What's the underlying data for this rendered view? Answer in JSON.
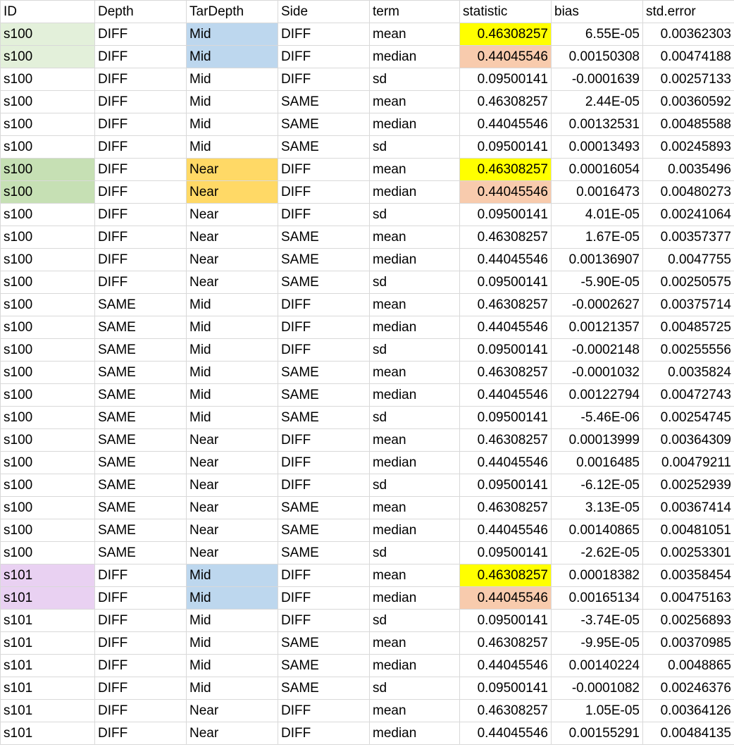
{
  "sheet": {
    "headers": [
      "ID",
      "Depth",
      "TarDepth",
      "Side",
      "term",
      "statistic",
      "bias",
      "std.error"
    ],
    "rows": [
      [
        "s100",
        "DIFF",
        "Mid",
        "DIFF",
        "mean",
        "0.46308257",
        "6.55E-05",
        "0.00362303"
      ],
      [
        "s100",
        "DIFF",
        "Mid",
        "DIFF",
        "median",
        "0.44045546",
        "0.00150308",
        "0.00474188"
      ],
      [
        "s100",
        "DIFF",
        "Mid",
        "DIFF",
        "sd",
        "0.09500141",
        "-0.0001639",
        "0.00257133"
      ],
      [
        "s100",
        "DIFF",
        "Mid",
        "SAME",
        "mean",
        "0.46308257",
        "2.44E-05",
        "0.00360592"
      ],
      [
        "s100",
        "DIFF",
        "Mid",
        "SAME",
        "median",
        "0.44045546",
        "0.00132531",
        "0.00485588"
      ],
      [
        "s100",
        "DIFF",
        "Mid",
        "SAME",
        "sd",
        "0.09500141",
        "0.00013493",
        "0.00245893"
      ],
      [
        "s100",
        "DIFF",
        "Near",
        "DIFF",
        "mean",
        "0.46308257",
        "0.00016054",
        "0.0035496"
      ],
      [
        "s100",
        "DIFF",
        "Near",
        "DIFF",
        "median",
        "0.44045546",
        "0.0016473",
        "0.00480273"
      ],
      [
        "s100",
        "DIFF",
        "Near",
        "DIFF",
        "sd",
        "0.09500141",
        "4.01E-05",
        "0.00241064"
      ],
      [
        "s100",
        "DIFF",
        "Near",
        "SAME",
        "mean",
        "0.46308257",
        "1.67E-05",
        "0.00357377"
      ],
      [
        "s100",
        "DIFF",
        "Near",
        "SAME",
        "median",
        "0.44045546",
        "0.00136907",
        "0.0047755"
      ],
      [
        "s100",
        "DIFF",
        "Near",
        "SAME",
        "sd",
        "0.09500141",
        "-5.90E-05",
        "0.00250575"
      ],
      [
        "s100",
        "SAME",
        "Mid",
        "DIFF",
        "mean",
        "0.46308257",
        "-0.0002627",
        "0.00375714"
      ],
      [
        "s100",
        "SAME",
        "Mid",
        "DIFF",
        "median",
        "0.44045546",
        "0.00121357",
        "0.00485725"
      ],
      [
        "s100",
        "SAME",
        "Mid",
        "DIFF",
        "sd",
        "0.09500141",
        "-0.0002148",
        "0.00255556"
      ],
      [
        "s100",
        "SAME",
        "Mid",
        "SAME",
        "mean",
        "0.46308257",
        "-0.0001032",
        "0.0035824"
      ],
      [
        "s100",
        "SAME",
        "Mid",
        "SAME",
        "median",
        "0.44045546",
        "0.00122794",
        "0.00472743"
      ],
      [
        "s100",
        "SAME",
        "Mid",
        "SAME",
        "sd",
        "0.09500141",
        "-5.46E-06",
        "0.00254745"
      ],
      [
        "s100",
        "SAME",
        "Near",
        "DIFF",
        "mean",
        "0.46308257",
        "0.00013999",
        "0.00364309"
      ],
      [
        "s100",
        "SAME",
        "Near",
        "DIFF",
        "median",
        "0.44045546",
        "0.0016485",
        "0.00479211"
      ],
      [
        "s100",
        "SAME",
        "Near",
        "DIFF",
        "sd",
        "0.09500141",
        "-6.12E-05",
        "0.00252939"
      ],
      [
        "s100",
        "SAME",
        "Near",
        "SAME",
        "mean",
        "0.46308257",
        "3.13E-05",
        "0.00367414"
      ],
      [
        "s100",
        "SAME",
        "Near",
        "SAME",
        "median",
        "0.44045546",
        "0.00140865",
        "0.00481051"
      ],
      [
        "s100",
        "SAME",
        "Near",
        "SAME",
        "sd",
        "0.09500141",
        "-2.62E-05",
        "0.00253301"
      ],
      [
        "s101",
        "DIFF",
        "Mid",
        "DIFF",
        "mean",
        "0.46308257",
        "0.00018382",
        "0.00358454"
      ],
      [
        "s101",
        "DIFF",
        "Mid",
        "DIFF",
        "median",
        "0.44045546",
        "0.00165134",
        "0.00475163"
      ],
      [
        "s101",
        "DIFF",
        "Mid",
        "DIFF",
        "sd",
        "0.09500141",
        "-3.74E-05",
        "0.00256893"
      ],
      [
        "s101",
        "DIFF",
        "Mid",
        "SAME",
        "mean",
        "0.46308257",
        "-9.95E-05",
        "0.00370985"
      ],
      [
        "s101",
        "DIFF",
        "Mid",
        "SAME",
        "median",
        "0.44045546",
        "0.00140224",
        "0.0048865"
      ],
      [
        "s101",
        "DIFF",
        "Mid",
        "SAME",
        "sd",
        "0.09500141",
        "-0.0001082",
        "0.00246376"
      ],
      [
        "s101",
        "DIFF",
        "Near",
        "DIFF",
        "mean",
        "0.46308257",
        "1.05E-05",
        "0.00364126"
      ],
      [
        "s101",
        "DIFF",
        "Near",
        "DIFF",
        "median",
        "0.44045546",
        "0.00155291",
        "0.00484135"
      ]
    ],
    "highlight_colors": {
      "light_green": "#e3f0da",
      "green": "#c6e0b4",
      "lavender": "#e9d1f2",
      "blue": "#bdd7ee",
      "orange": "#ffd966",
      "yellow": "#ffff00",
      "peach": "#f8cbad"
    },
    "highlights": [
      {
        "row": 0,
        "col": 0,
        "color": "light_green"
      },
      {
        "row": 1,
        "col": 0,
        "color": "light_green"
      },
      {
        "row": 0,
        "col": 2,
        "color": "blue"
      },
      {
        "row": 1,
        "col": 2,
        "color": "blue"
      },
      {
        "row": 0,
        "col": 5,
        "color": "yellow"
      },
      {
        "row": 1,
        "col": 5,
        "color": "peach"
      },
      {
        "row": 6,
        "col": 0,
        "color": "green"
      },
      {
        "row": 7,
        "col": 0,
        "color": "green"
      },
      {
        "row": 6,
        "col": 2,
        "color": "orange"
      },
      {
        "row": 7,
        "col": 2,
        "color": "orange"
      },
      {
        "row": 6,
        "col": 5,
        "color": "yellow"
      },
      {
        "row": 7,
        "col": 5,
        "color": "peach"
      },
      {
        "row": 24,
        "col": 0,
        "color": "lavender"
      },
      {
        "row": 25,
        "col": 0,
        "color": "lavender"
      },
      {
        "row": 24,
        "col": 2,
        "color": "blue"
      },
      {
        "row": 25,
        "col": 2,
        "color": "blue"
      },
      {
        "row": 24,
        "col": 5,
        "color": "yellow"
      },
      {
        "row": 25,
        "col": 5,
        "color": "peach"
      }
    ]
  }
}
